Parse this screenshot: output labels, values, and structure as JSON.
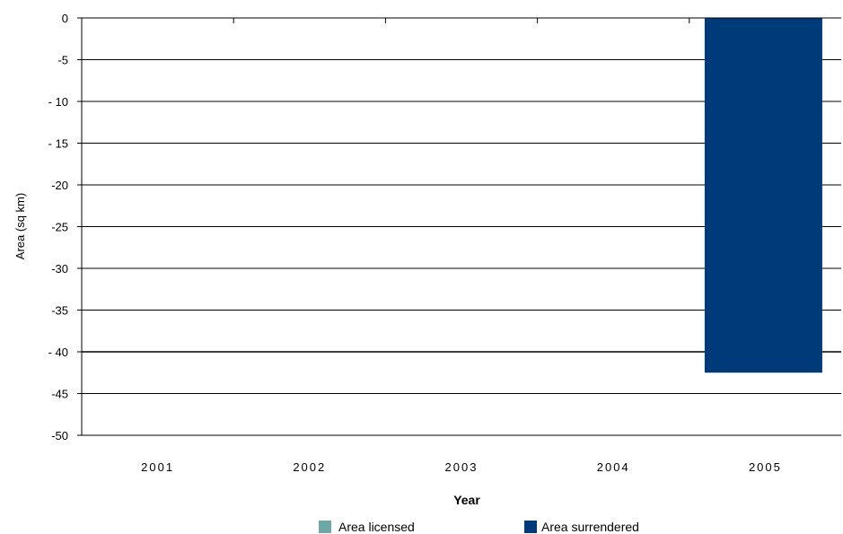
{
  "chart_data": {
    "type": "bar",
    "xlabel": "Year",
    "ylabel": "Area (sq km)",
    "categories": [
      "2001",
      "2002",
      "2003",
      "2004",
      "2005"
    ],
    "ylim": [
      -50,
      0
    ],
    "yticks": [
      0,
      -5,
      -10,
      -15,
      -20,
      -25,
      -30,
      -35,
      -40,
      -45,
      -50
    ],
    "ytick_labels": [
      "0",
      "-5",
      "- 10",
      "- 15",
      "-20",
      "-25",
      "-30",
      "-35",
      "- 40",
      "-45",
      "-50"
    ],
    "grid": true,
    "legend_position": "bottom",
    "series": [
      {
        "name": "Area licensed",
        "color": "#6fa7a6",
        "values": [
          0,
          0,
          0,
          0,
          0
        ]
      },
      {
        "name": "Area surrendered",
        "color": "#003a78",
        "values": [
          0,
          0,
          0,
          0,
          -42.5
        ]
      }
    ]
  }
}
